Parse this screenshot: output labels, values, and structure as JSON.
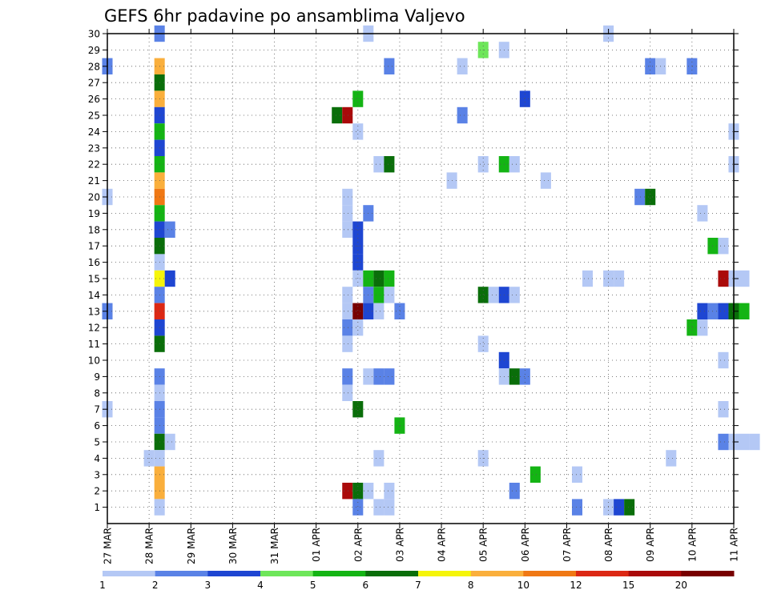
{
  "chart_data": {
    "type": "heatmap",
    "title": "GEFS 6hr padavine po ansamblima Valjevo",
    "xlabel": "",
    "ylabel": "",
    "x_tick_labels": [
      "27 MAR",
      "28 MAR",
      "29 MAR",
      "30 MAR",
      "31 MAR",
      "01 APR",
      "02 APR",
      "03 APR",
      "04 APR",
      "05 APR",
      "06 APR",
      "07 APR",
      "08 APR",
      "09 APR",
      "10 APR",
      "11 APR"
    ],
    "x_range_days": [
      0,
      15
    ],
    "y_tick_labels": [
      "1",
      "2",
      "3",
      "4",
      "5",
      "6",
      "7",
      "8",
      "9",
      "10",
      "11",
      "12",
      "13",
      "14",
      "15",
      "16",
      "17",
      "18",
      "19",
      "20",
      "21",
      "22",
      "23",
      "24",
      "25",
      "26",
      "27",
      "28",
      "29",
      "30"
    ],
    "y_range": [
      0,
      30
    ],
    "grid": true,
    "legend": "colorbar-bottom",
    "colorbar": {
      "labels": [
        "1",
        "2",
        "3",
        "4",
        "5",
        "6",
        "7",
        "8",
        "10",
        "12",
        "15",
        "20"
      ],
      "colors": [
        "#b4c8f5",
        "#5a82e6",
        "#1e46d2",
        "#6ee65a",
        "#14b414",
        "#0a6e0a",
        "#f5f50a",
        "#faaf3c",
        "#f07814",
        "#dc2814",
        "#aa0a0a",
        "#780000"
      ]
    },
    "cells": [
      {
        "member": 30,
        "day": 1.25,
        "level": 2
      },
      {
        "member": 30,
        "day": 6.25,
        "level": 1
      },
      {
        "member": 30,
        "day": 12.0,
        "level": 1
      },
      {
        "member": 29,
        "day": 9.0,
        "level": 4
      },
      {
        "member": 29,
        "day": 9.5,
        "level": 1
      },
      {
        "member": 28,
        "day": 0.0,
        "level": 2
      },
      {
        "member": 28,
        "day": 1.25,
        "level": 8
      },
      {
        "member": 28,
        "day": 6.75,
        "level": 2
      },
      {
        "member": 28,
        "day": 8.5,
        "level": 1
      },
      {
        "member": 28,
        "day": 13.0,
        "level": 2
      },
      {
        "member": 28,
        "day": 13.25,
        "level": 1
      },
      {
        "member": 28,
        "day": 14.0,
        "level": 2
      },
      {
        "member": 27,
        "day": 1.25,
        "level": 6
      },
      {
        "member": 26,
        "day": 1.25,
        "level": 8
      },
      {
        "member": 26,
        "day": 6.0,
        "level": 5
      },
      {
        "member": 26,
        "day": 10.0,
        "level": 3
      },
      {
        "member": 25,
        "day": 1.25,
        "level": 3
      },
      {
        "member": 25,
        "day": 5.5,
        "level": 6
      },
      {
        "member": 25,
        "day": 5.75,
        "level": 11
      },
      {
        "member": 25,
        "day": 8.5,
        "level": 2
      },
      {
        "member": 24,
        "day": 1.25,
        "level": 5
      },
      {
        "member": 24,
        "day": 6.0,
        "level": 1
      },
      {
        "member": 24,
        "day": 15.0,
        "level": 1
      },
      {
        "member": 23,
        "day": 1.25,
        "level": 3
      },
      {
        "member": 22,
        "day": 1.25,
        "level": 5
      },
      {
        "member": 22,
        "day": 6.5,
        "level": 1
      },
      {
        "member": 22,
        "day": 6.75,
        "level": 6
      },
      {
        "member": 22,
        "day": 9.0,
        "level": 1
      },
      {
        "member": 22,
        "day": 9.5,
        "level": 5
      },
      {
        "member": 22,
        "day": 9.75,
        "level": 1
      },
      {
        "member": 22,
        "day": 15.0,
        "level": 1
      },
      {
        "member": 21,
        "day": 1.25,
        "level": 8
      },
      {
        "member": 21,
        "day": 8.25,
        "level": 1
      },
      {
        "member": 21,
        "day": 10.5,
        "level": 1
      },
      {
        "member": 20,
        "day": 0.0,
        "level": 1
      },
      {
        "member": 20,
        "day": 1.25,
        "level": 9
      },
      {
        "member": 20,
        "day": 5.75,
        "level": 1
      },
      {
        "member": 20,
        "day": 12.75,
        "level": 2
      },
      {
        "member": 20,
        "day": 13.0,
        "level": 6
      },
      {
        "member": 19,
        "day": 1.25,
        "level": 5
      },
      {
        "member": 19,
        "day": 5.75,
        "level": 1
      },
      {
        "member": 19,
        "day": 6.25,
        "level": 2
      },
      {
        "member": 19,
        "day": 14.25,
        "level": 1
      },
      {
        "member": 18,
        "day": 1.25,
        "level": 3
      },
      {
        "member": 18,
        "day": 1.5,
        "level": 2
      },
      {
        "member": 18,
        "day": 5.75,
        "level": 1
      },
      {
        "member": 18,
        "day": 6.0,
        "level": 3
      },
      {
        "member": 17,
        "day": 1.25,
        "level": 6
      },
      {
        "member": 17,
        "day": 6.0,
        "level": 3
      },
      {
        "member": 17,
        "day": 14.5,
        "level": 5
      },
      {
        "member": 17,
        "day": 14.75,
        "level": 1
      },
      {
        "member": 16,
        "day": 1.25,
        "level": 1
      },
      {
        "member": 16,
        "day": 6.0,
        "level": 3
      },
      {
        "member": 15,
        "day": 1.25,
        "level": 7
      },
      {
        "member": 15,
        "day": 1.5,
        "level": 3
      },
      {
        "member": 15,
        "day": 6.0,
        "level": 1
      },
      {
        "member": 15,
        "day": 6.25,
        "level": 5
      },
      {
        "member": 15,
        "day": 6.5,
        "level": 6
      },
      {
        "member": 15,
        "day": 6.75,
        "level": 5
      },
      {
        "member": 15,
        "day": 11.5,
        "level": 1
      },
      {
        "member": 15,
        "day": 12.0,
        "level": 1
      },
      {
        "member": 15,
        "day": 12.25,
        "level": 1
      },
      {
        "member": 15,
        "day": 14.75,
        "level": 11
      },
      {
        "member": 15,
        "day": 15.0,
        "level": 1
      },
      {
        "member": 15,
        "day": 15.25,
        "level": 1
      },
      {
        "member": 14,
        "day": 1.25,
        "level": 2
      },
      {
        "member": 14,
        "day": 5.75,
        "level": 1
      },
      {
        "member": 14,
        "day": 6.25,
        "level": 2
      },
      {
        "member": 14,
        "day": 6.5,
        "level": 5
      },
      {
        "member": 14,
        "day": 6.75,
        "level": 1
      },
      {
        "member": 14,
        "day": 9.0,
        "level": 6
      },
      {
        "member": 14,
        "day": 9.25,
        "level": 1
      },
      {
        "member": 14,
        "day": 9.5,
        "level": 3
      },
      {
        "member": 14,
        "day": 9.75,
        "level": 1
      },
      {
        "member": 13,
        "day": 0.0,
        "level": 2
      },
      {
        "member": 13,
        "day": 1.25,
        "level": 10
      },
      {
        "member": 13,
        "day": 5.75,
        "level": 1
      },
      {
        "member": 13,
        "day": 6.0,
        "level": 12
      },
      {
        "member": 13,
        "day": 6.25,
        "level": 3
      },
      {
        "member": 13,
        "day": 6.5,
        "level": 1
      },
      {
        "member": 13,
        "day": 7.0,
        "level": 2
      },
      {
        "member": 13,
        "day": 14.25,
        "level": 3
      },
      {
        "member": 13,
        "day": 14.5,
        "level": 2
      },
      {
        "member": 13,
        "day": 14.75,
        "level": 3
      },
      {
        "member": 13,
        "day": 15.0,
        "level": 6
      },
      {
        "member": 13,
        "day": 15.25,
        "level": 5
      },
      {
        "member": 12,
        "day": 1.25,
        "level": 3
      },
      {
        "member": 12,
        "day": 5.75,
        "level": 2
      },
      {
        "member": 12,
        "day": 6.0,
        "level": 1
      },
      {
        "member": 12,
        "day": 14.0,
        "level": 5
      },
      {
        "member": 12,
        "day": 14.25,
        "level": 1
      },
      {
        "member": 11,
        "day": 1.25,
        "level": 6
      },
      {
        "member": 11,
        "day": 5.75,
        "level": 1
      },
      {
        "member": 11,
        "day": 9.0,
        "level": 1
      },
      {
        "member": 10,
        "day": 9.5,
        "level": 3
      },
      {
        "member": 10,
        "day": 14.75,
        "level": 1
      },
      {
        "member": 9,
        "day": 1.25,
        "level": 2
      },
      {
        "member": 9,
        "day": 5.75,
        "level": 2
      },
      {
        "member": 9,
        "day": 6.25,
        "level": 1
      },
      {
        "member": 9,
        "day": 6.5,
        "level": 2
      },
      {
        "member": 9,
        "day": 6.75,
        "level": 2
      },
      {
        "member": 9,
        "day": 9.5,
        "level": 1
      },
      {
        "member": 9,
        "day": 9.75,
        "level": 6
      },
      {
        "member": 9,
        "day": 10.0,
        "level": 2
      },
      {
        "member": 8,
        "day": 1.25,
        "level": 1
      },
      {
        "member": 8,
        "day": 5.75,
        "level": 1
      },
      {
        "member": 7,
        "day": 0.0,
        "level": 1
      },
      {
        "member": 7,
        "day": 1.25,
        "level": 2
      },
      {
        "member": 7,
        "day": 6.0,
        "level": 6
      },
      {
        "member": 7,
        "day": 14.75,
        "level": 1
      },
      {
        "member": 6,
        "day": 1.25,
        "level": 2
      },
      {
        "member": 6,
        "day": 7.0,
        "level": 5
      },
      {
        "member": 5,
        "day": 1.25,
        "level": 6
      },
      {
        "member": 5,
        "day": 1.5,
        "level": 1
      },
      {
        "member": 5,
        "day": 14.75,
        "level": 2
      },
      {
        "member": 5,
        "day": 15.0,
        "level": 1
      },
      {
        "member": 5,
        "day": 15.25,
        "level": 1
      },
      {
        "member": 5,
        "day": 15.5,
        "level": 1
      },
      {
        "member": 4,
        "day": 1.0,
        "level": 1
      },
      {
        "member": 4,
        "day": 1.25,
        "level": 1
      },
      {
        "member": 4,
        "day": 6.5,
        "level": 1
      },
      {
        "member": 4,
        "day": 9.0,
        "level": 1
      },
      {
        "member": 4,
        "day": 13.5,
        "level": 1
      },
      {
        "member": 3,
        "day": 1.25,
        "level": 8
      },
      {
        "member": 3,
        "day": 10.25,
        "level": 5
      },
      {
        "member": 3,
        "day": 11.25,
        "level": 1
      },
      {
        "member": 2,
        "day": 1.25,
        "level": 8
      },
      {
        "member": 2,
        "day": 5.75,
        "level": 11
      },
      {
        "member": 2,
        "day": 6.0,
        "level": 6
      },
      {
        "member": 2,
        "day": 6.25,
        "level": 1
      },
      {
        "member": 2,
        "day": 6.75,
        "level": 1
      },
      {
        "member": 2,
        "day": 9.75,
        "level": 2
      },
      {
        "member": 1,
        "day": 1.25,
        "level": 1
      },
      {
        "member": 1,
        "day": 6.0,
        "level": 2
      },
      {
        "member": 1,
        "day": 6.5,
        "level": 1
      },
      {
        "member": 1,
        "day": 6.75,
        "level": 1
      },
      {
        "member": 1,
        "day": 11.25,
        "level": 2
      },
      {
        "member": 1,
        "day": 12.0,
        "level": 1
      },
      {
        "member": 1,
        "day": 12.25,
        "level": 3
      },
      {
        "member": 1,
        "day": 12.5,
        "level": 6
      }
    ]
  }
}
